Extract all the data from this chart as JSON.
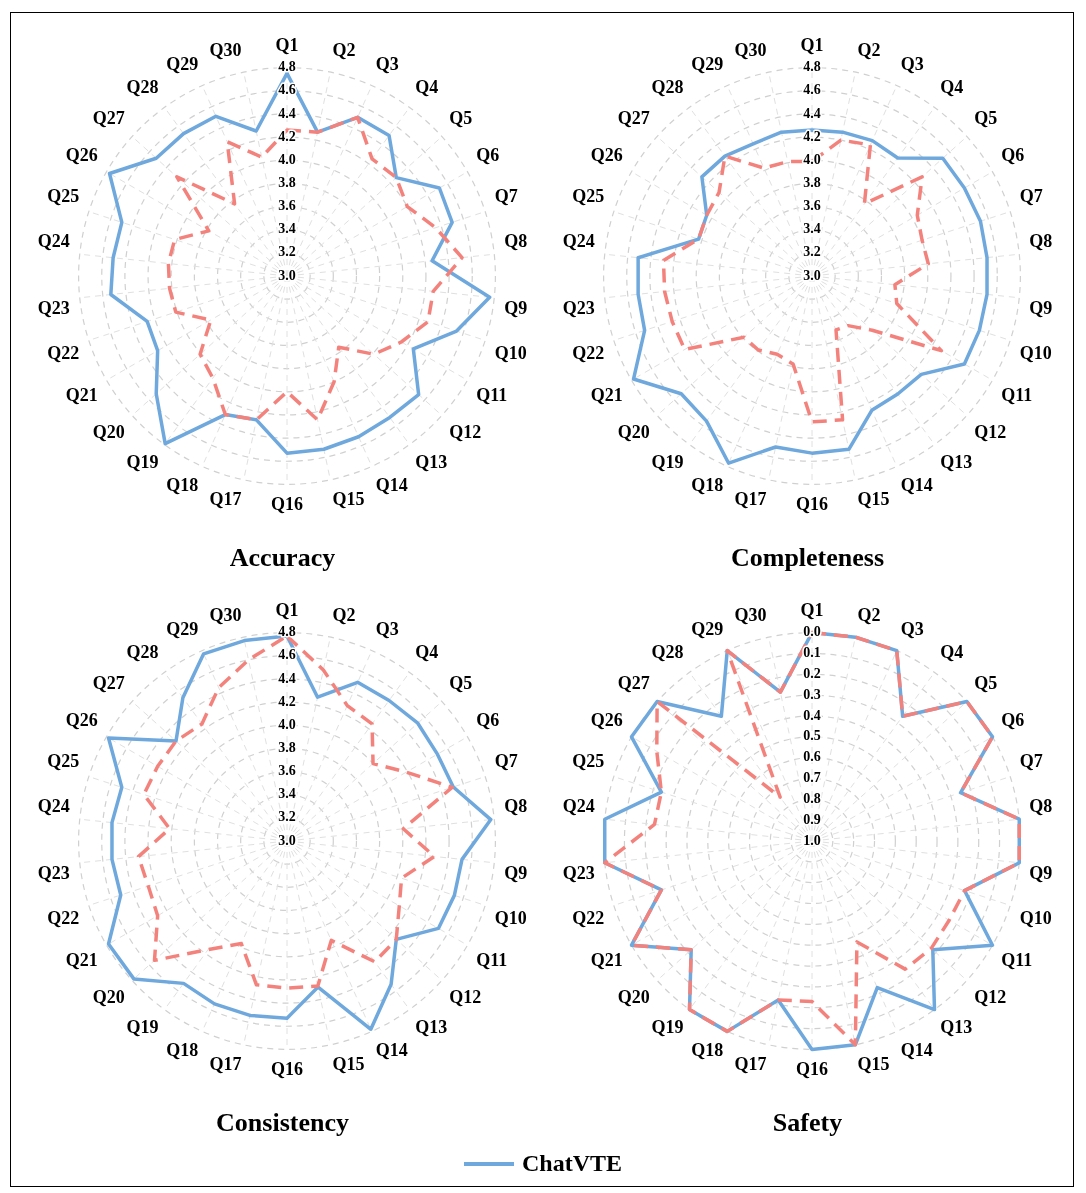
{
  "chart_data": [
    {
      "type": "radar",
      "title": "Accuracy",
      "categories": [
        "Q1",
        "Q2",
        "Q3",
        "Q4",
        "Q5",
        "Q6",
        "Q7",
        "Q8",
        "Q9",
        "Q10",
        "Q11",
        "Q12",
        "Q13",
        "Q14",
        "Q15",
        "Q16",
        "Q17",
        "Q18",
        "Q19",
        "Q20",
        "Q21",
        "Q22",
        "Q23",
        "Q24",
        "Q25",
        "Q26",
        "Q27",
        "Q28",
        "Q29",
        "Q30"
      ],
      "series": [
        {
          "color": "#6fa8dc",
          "line_style": "solid",
          "values": [
            4.75,
            4.27,
            4.5,
            4.5,
            4.27,
            4.52,
            4.5,
            4.26,
            4.76,
            4.54,
            4.26,
            4.53,
            4.51,
            4.52,
            4.53,
            4.53,
            4.27,
            4.31,
            4.79,
            4.52,
            4.29,
            4.27,
            4.53,
            4.51,
            4.5,
            4.77,
            4.52,
            4.52,
            4.51,
            4.28
          ]
        },
        {
          "color": "#f4827c",
          "line_style": "dashed",
          "values": [
            4.26,
            4.27,
            4.5,
            4.25,
            4.27,
            4.2,
            4.35,
            4.52,
            4.27,
            4.28,
            4.14,
            4.01,
            3.76,
            4.0,
            4.27,
            4.0,
            4.27,
            4.31,
            4.09,
            4.01,
            3.76,
            4.01,
            4.02,
            4.03,
            4.02,
            3.78,
            4.28,
            3.77,
            4.27,
            4.05
          ]
        }
      ],
      "ylim": [
        3.0,
        4.8
      ],
      "yticks": [
        {
          "value": 3,
          "label": "3.0"
        },
        3.2,
        3.4,
        3.6,
        3.8,
        {
          "value": 4,
          "label": "4.0"
        },
        4.2,
        4.4,
        4.6,
        4.8
      ],
      "grid": true,
      "marker": "none"
    },
    {
      "type": "radar",
      "title": "Completeness",
      "categories": [
        "Q1",
        "Q2",
        "Q3",
        "Q4",
        "Q5",
        "Q6",
        "Q7",
        "Q8",
        "Q9",
        "Q10",
        "Q11",
        "Q12",
        "Q13",
        "Q14",
        "Q15",
        "Q16",
        "Q17",
        "Q18",
        "Q19",
        "Q20",
        "Q21",
        "Q22",
        "Q23",
        "Q24",
        "Q25",
        "Q26",
        "Q27",
        "Q28",
        "Q29",
        "Q30"
      ],
      "series": [
        {
          "color": "#6fa8dc",
          "line_style": "solid",
          "values": [
            4.26,
            4.27,
            4.28,
            4.26,
            4.52,
            4.52,
            4.53,
            4.52,
            4.52,
            4.52,
            4.52,
            4.27,
            4.26,
            4.27,
            4.53,
            4.53,
            4.51,
            4.77,
            4.55,
            4.52,
            4.78,
            4.52,
            4.51,
            4.51,
            4.03,
            4.05,
            4.28,
            4.28,
            4.25,
            4.27
          ]
        },
        {
          "color": "#f4827c",
          "line_style": "dashed",
          "values": [
            3.99,
            4.2,
            4.24,
            3.77,
            4.28,
            4.05,
            4.0,
            4.01,
            3.72,
            3.77,
            4.29,
            3.7,
            3.53,
            3.51,
            4.27,
            4.26,
            3.78,
            3.74,
            3.79,
            3.79,
            4.27,
            4.27,
            4.28,
            4.29,
            4.03,
            4.05,
            4.08,
            4.28,
            4.02,
            4.01
          ]
        }
      ],
      "ylim": [
        3.0,
        4.8
      ],
      "yticks": [
        {
          "value": 3,
          "label": "3.0"
        },
        3.2,
        3.4,
        3.6,
        3.8,
        {
          "value": 4,
          "label": "4.0"
        },
        4.2,
        4.4,
        4.6,
        4.8
      ],
      "grid": true,
      "marker": "none"
    },
    {
      "type": "radar",
      "title": "Consistency",
      "categories": [
        "Q1",
        "Q2",
        "Q3",
        "Q4",
        "Q5",
        "Q6",
        "Q7",
        "Q8",
        "Q9",
        "Q10",
        "Q11",
        "Q12",
        "Q13",
        "Q14",
        "Q15",
        "Q16",
        "Q17",
        "Q18",
        "Q19",
        "Q20",
        "Q21",
        "Q22",
        "Q23",
        "Q24",
        "Q25",
        "Q26",
        "Q27",
        "Q28",
        "Q29",
        "Q30"
      ],
      "series": [
        {
          "color": "#6fa8dc",
          "line_style": "solid",
          "values": [
            4.77,
            4.27,
            4.5,
            4.5,
            4.52,
            4.5,
            4.51,
            4.77,
            4.52,
            4.52,
            4.51,
            4.27,
            4.53,
            4.78,
            4.29,
            4.53,
            4.54,
            4.54,
            4.52,
            4.78,
            4.78,
            4.51,
            4.52,
            4.52,
            4.5,
            4.78,
            4.29,
            4.53,
            4.77,
            4.77
          ]
        },
        {
          "color": "#f4827c",
          "line_style": "dashed",
          "values": [
            4.77,
            4.51,
            4.28,
            4.25,
            4.0,
            4.19,
            4.5,
            4.01,
            4.28,
            4.04,
            4.12,
            4.27,
            4.29,
            3.94,
            4.28,
            4.27,
            4.27,
            3.97,
            4.16,
            4.54,
            4.29,
            4.26,
            4.29,
            4.02,
            4.3,
            4.29,
            4.29,
            4.25,
            4.45,
            4.6
          ]
        }
      ],
      "ylim": [
        3.0,
        4.8
      ],
      "yticks": [
        {
          "value": 3,
          "label": "3.0"
        },
        3.2,
        3.4,
        3.6,
        3.8,
        {
          "value": 4,
          "label": "4.0"
        },
        4.2,
        4.4,
        4.6,
        4.8
      ],
      "grid": true,
      "marker": "none"
    },
    {
      "type": "radar",
      "title": "Safety",
      "categories": [
        "Q1",
        "Q2",
        "Q3",
        "Q4",
        "Q5",
        "Q6",
        "Q7",
        "Q8",
        "Q9",
        "Q10",
        "Q11",
        "Q12",
        "Q13",
        "Q14",
        "Q15",
        "Q16",
        "Q17",
        "Q18",
        "Q19",
        "Q20",
        "Q21",
        "Q22",
        "Q23",
        "Q24",
        "Q25",
        "Q26",
        "Q27",
        "Q28",
        "Q29",
        "Q30"
      ],
      "series": [
        {
          "name": "ChatVTE",
          "color": "#6fa8dc",
          "line_style": "solid",
          "values": [
            0,
            0,
            0,
            0.26,
            0,
            0,
            0.25,
            0,
            0,
            0.23,
            0,
            0.22,
            0,
            0.23,
            0,
            0,
            0.22,
            0,
            0,
            0.22,
            0,
            0.24,
            0,
            0,
            0.24,
            0,
            0,
            0.26,
            0,
            0.27
          ]
        },
        {
          "color": "#f4827c",
          "line_style": "dashed",
          "values": [
            0,
            0,
            0,
            0.26,
            0,
            0,
            0.25,
            0,
            0,
            0.23,
            0.24,
            0.23,
            0.24,
            0.47,
            0,
            0.23,
            0.22,
            0,
            0,
            0.22,
            0,
            0.24,
            0,
            0.24,
            0.24,
            0.14,
            0,
            0.74,
            0,
            0.27
          ]
        }
      ],
      "ylim": [
        1.0,
        0.0
      ],
      "yticks": [
        {
          "value": 0,
          "label": "0.0"
        },
        0.1,
        0.2,
        0.3,
        0.4,
        0.5,
        0.6,
        0.7,
        0.8,
        0.9,
        {
          "value": 1,
          "label": "1.0"
        }
      ],
      "grid": true,
      "marker": "none",
      "legend": "bottom"
    }
  ]
}
